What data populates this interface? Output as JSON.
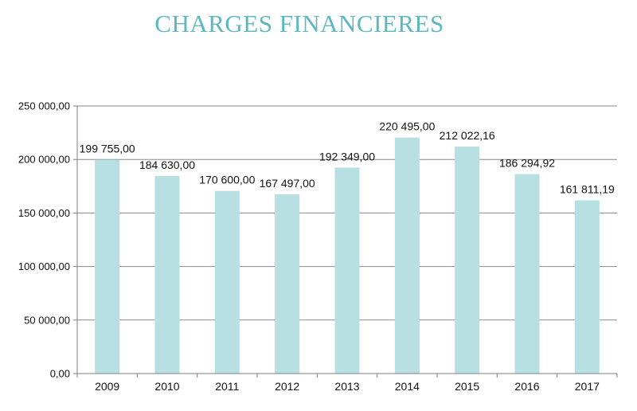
{
  "chart_data": {
    "type": "bar",
    "title": "CHARGES FINANCIERES",
    "categories": [
      "2009",
      "2010",
      "2011",
      "2012",
      "2013",
      "2014",
      "2015",
      "2016",
      "2017"
    ],
    "values": [
      199755.0,
      184630.0,
      170600.0,
      167497.0,
      192349.0,
      220495.0,
      212022.16,
      186294.92,
      161811.19
    ],
    "value_labels": [
      "199 755,00",
      "184 630,00",
      "170 600,00",
      "167 497,00",
      "192 349,00",
      "220 495,00",
      "212 022,16",
      "186 294,92",
      "161 811,19"
    ],
    "ylim": [
      0,
      250000
    ],
    "yticks": [
      0,
      50000,
      100000,
      150000,
      200000,
      250000
    ],
    "ytick_labels": [
      "0,00",
      "50 000,00",
      "100 000,00",
      "150 000,00",
      "200 000,00",
      "250 000,00"
    ],
    "grid": true,
    "legend": "none",
    "colors": {
      "bar": "#b8dfe1",
      "title": "#5cb8c0",
      "grid": "#8a8a8a",
      "axis": "#7f7f7f"
    }
  }
}
